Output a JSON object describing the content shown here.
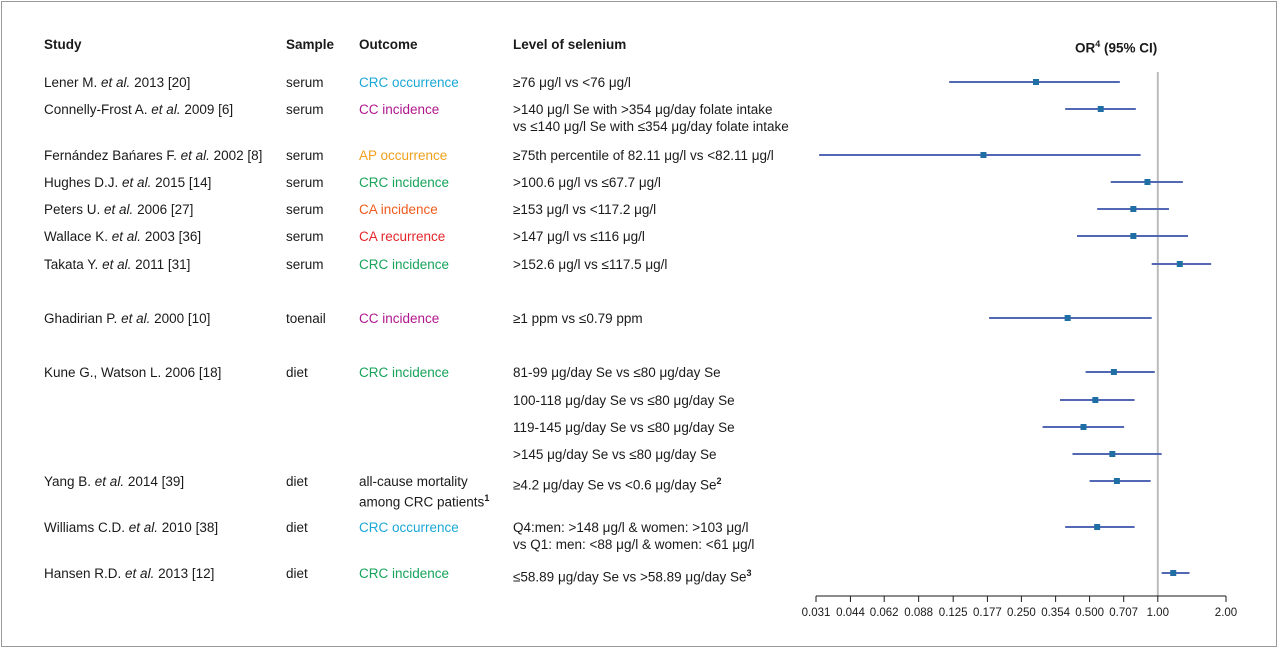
{
  "headers": {
    "study": "Study",
    "sample": "Sample",
    "outcome": "Outcome",
    "level": "Level of selenium",
    "or_label": "OR",
    "or_sup": "4",
    "or_ci": " (95% CI)"
  },
  "colors": {
    "CRC occurrence": "#1aa7d6",
    "CC incidence": "#b0178f",
    "AP occurrence": "#f0a01c",
    "CRC incidence": "#17a35a",
    "CA incidence": "#ef5b1d",
    "CA recurrence": "#e3262a",
    "all-cause mortality": "#1a1a1a",
    "ci_line": "#5268b5",
    "point": "#1f6fa5",
    "reference_line": "#bbbbbb"
  },
  "rows": [
    {
      "study_name": "Lener M. ",
      "study_etal": "et al.",
      "study_tail": " 2013 [20]",
      "sample": "serum",
      "outcome": "CRC occurrence",
      "outcome_color": "#1aa7d6",
      "level": "≥76 μg/l vs <76 μg/l",
      "level2": "",
      "level_sup": ""
    },
    {
      "study_name": "Connelly-Frost A. ",
      "study_etal": "et al.",
      "study_tail": " 2009 [6]",
      "sample": "serum",
      "outcome": "CC incidence",
      "outcome_color": "#b0178f",
      "level": ">140 μg/l Se with >354 μg/day folate intake",
      "level2": "vs ≤140 μg/l Se with ≤354 μg/day folate intake",
      "level_sup": ""
    },
    {
      "study_name": "Fernández Bańares F. ",
      "study_etal": "et al.",
      "study_tail": " 2002 [8]",
      "sample": "serum",
      "outcome": "AP occurrence",
      "outcome_color": "#f0a01c",
      "level": "≥75th percentile of 82.11 μg/l vs <82.11 μg/l",
      "level2": "",
      "level_sup": ""
    },
    {
      "study_name": "Hughes D.J. ",
      "study_etal": "et al.",
      "study_tail": " 2015 [14]",
      "sample": "serum",
      "outcome": "CRC incidence",
      "outcome_color": "#17a35a",
      "level": ">100.6 μg/l vs ≤67.7 μg/l",
      "level2": "",
      "level_sup": ""
    },
    {
      "study_name": "Peters U. ",
      "study_etal": "et al.",
      "study_tail": " 2006 [27]",
      "sample": "serum",
      "outcome": "CA incidence",
      "outcome_color": "#ef5b1d",
      "level": "≥153 μg/l vs <117.2 μg/l",
      "level2": "",
      "level_sup": ""
    },
    {
      "study_name": "Wallace K. ",
      "study_etal": "et al.",
      "study_tail": " 2003 [36]",
      "sample": "serum",
      "outcome": "CA recurrence",
      "outcome_color": "#e3262a",
      "level": ">147 μg/l vs ≤116 μg/l",
      "level2": "",
      "level_sup": ""
    },
    {
      "study_name": "Takata Y. ",
      "study_etal": "et al.",
      "study_tail": " 2011 [31]",
      "sample": "serum",
      "outcome": "CRC incidence",
      "outcome_color": "#17a35a",
      "level": ">152.6 μg/l vs ≤117.5 μg/l",
      "level2": "",
      "level_sup": ""
    },
    {
      "study_name": "Ghadirian P. ",
      "study_etal": "et al.",
      "study_tail": " 2000 [10]",
      "sample": "toenail",
      "outcome": "CC incidence",
      "outcome_color": "#b0178f",
      "level": "≥1 ppm vs ≤0.79 ppm",
      "level2": "",
      "level_sup": ""
    },
    {
      "study_name": "Kune G., Watson L. 2006 [18]",
      "study_etal": "",
      "study_tail": "",
      "sample": "diet",
      "outcome": "CRC incidence",
      "outcome_color": "#17a35a",
      "level": "81-99 μg/day Se vs ≤80 μg/day Se",
      "level2": "",
      "level_sup": ""
    },
    {
      "study_name": "",
      "study_etal": "",
      "study_tail": "",
      "sample": "",
      "outcome": "",
      "outcome_color": "#17a35a",
      "level": "100-118 μg/day Se vs ≤80 μg/day Se",
      "level2": "",
      "level_sup": ""
    },
    {
      "study_name": "",
      "study_etal": "",
      "study_tail": "",
      "sample": "",
      "outcome": "",
      "outcome_color": "#17a35a",
      "level": "119-145 μg/day Se vs ≤80 μg/day Se",
      "level2": "",
      "level_sup": ""
    },
    {
      "study_name": "",
      "study_etal": "",
      "study_tail": "",
      "sample": "",
      "outcome": "",
      "outcome_color": "#17a35a",
      "level": ">145 μg/day Se vs ≤80 μg/day Se",
      "level2": "",
      "level_sup": ""
    },
    {
      "study_name": "Yang B. ",
      "study_etal": "et al.",
      "study_tail": " 2014 [39]",
      "sample": "diet",
      "outcome": "all-cause mortality",
      "outcome2": "among CRC patients",
      "outcome_sup": "1",
      "outcome_color": "#1a1a1a",
      "level": "≥4.2 μg/day Se vs <0.6 μg/day Se",
      "level2": "",
      "level_sup": "2"
    },
    {
      "study_name": "Williams C.D. ",
      "study_etal": "et al.",
      "study_tail": " 2010 [38]",
      "sample": "diet",
      "outcome": "CRC occurrence",
      "outcome_color": "#1aa7d6",
      "level": "Q4:men: >148 μg/l & women: >103 μg/l",
      "level2": "vs Q1: men: <88 μg/l & women: <61 μg/l",
      "level_sup": ""
    },
    {
      "study_name": "Hansen R.D. ",
      "study_etal": "et al.",
      "study_tail": " 2013 [12]",
      "sample": "diet",
      "outcome": "CRC incidence",
      "outcome_color": "#17a35a",
      "level": "≤58.89 μg/day Se vs >58.89 μg/day Se",
      "level2": "",
      "level_sup": "3"
    }
  ],
  "chart_data": {
    "type": "scatter",
    "title": "OR4 (95% CI)",
    "xscale": "log2",
    "xlim": [
      0.031,
      2.0
    ],
    "xticks": [
      "0.031",
      "0.044",
      "0.062",
      "0.088",
      "0.125",
      "0.177",
      "0.250",
      "0.354",
      "0.500",
      "0.707",
      "1.00",
      "2.00"
    ],
    "reference_line": 1.0,
    "points": [
      {
        "or": 0.29,
        "lower": 0.12,
        "upper": 0.68
      },
      {
        "or": 0.56,
        "lower": 0.39,
        "upper": 0.8
      },
      {
        "or": 0.17,
        "lower": 0.032,
        "upper": 0.84
      },
      {
        "or": 0.9,
        "lower": 0.62,
        "upper": 1.29
      },
      {
        "or": 0.78,
        "lower": 0.54,
        "upper": 1.12
      },
      {
        "or": 0.78,
        "lower": 0.44,
        "upper": 1.36
      },
      {
        "or": 1.25,
        "lower": 0.94,
        "upper": 1.72
      },
      {
        "or": 0.4,
        "lower": 0.18,
        "upper": 0.94
      },
      {
        "or": 0.64,
        "lower": 0.48,
        "upper": 0.97
      },
      {
        "or": 0.53,
        "lower": 0.37,
        "upper": 0.79
      },
      {
        "or": 0.47,
        "lower": 0.31,
        "upper": 0.71
      },
      {
        "or": 0.63,
        "lower": 0.42,
        "upper": 1.04
      },
      {
        "or": 0.66,
        "lower": 0.5,
        "upper": 0.93
      },
      {
        "or": 0.54,
        "lower": 0.39,
        "upper": 0.79
      },
      {
        "or": 1.17,
        "lower": 1.04,
        "upper": 1.38
      }
    ]
  }
}
